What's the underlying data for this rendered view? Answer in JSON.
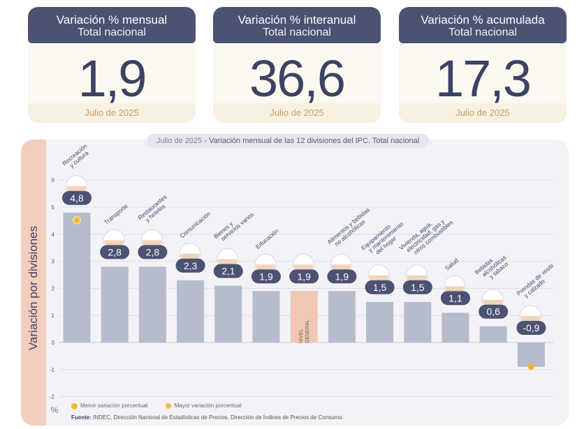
{
  "cards": [
    {
      "title": "Variación % mensual",
      "subtitle": "Total nacional",
      "value": "1,9",
      "date": "Julio de 2025"
    },
    {
      "title": "Variación % interanual",
      "subtitle": "Total nacional",
      "value": "36,6",
      "date": "Julio de 2025"
    },
    {
      "title": "Variación % acumulada",
      "subtitle": "Total nacional",
      "value": "17,3",
      "date": "Julio de 2025"
    }
  ],
  "colors": {
    "bar": "#b7bccd",
    "general_bar": "#efc7b3",
    "badge": "#4b5272",
    "accent": "#f2b632"
  },
  "chart_data": {
    "type": "bar",
    "title_date": "Julio de 2025",
    "title": "Variación mensual de las 12 divisiones del IPC. Total nacional",
    "ylabel": "Variación por divisiones",
    "yunit": "%",
    "ylim": [
      -2,
      6
    ],
    "yticks": [
      "-2",
      "-1",
      "0",
      "1",
      "2",
      "3",
      "4",
      "5",
      "6"
    ],
    "grid": true,
    "categories": [
      "Recreación y cultura",
      "Transporte",
      "Restaurantes y hoteles",
      "Comunicación",
      "Bienes y servicios varios",
      "Educación",
      "NIVEL GENERAL",
      "Alimentos y bebidas no alcohólicas",
      "Equipamiento y mantenimiento del hogar",
      "Vivienda, agua, electricidad, gas y otros combustibles",
      "Salud",
      "Bebidas alcohólicas y tabaco",
      "Prendas de vestir y calzado"
    ],
    "values": [
      4.8,
      2.8,
      2.8,
      2.3,
      2.1,
      1.9,
      1.9,
      1.9,
      1.5,
      1.5,
      1.1,
      0.6,
      -0.9
    ],
    "value_labels": [
      "4,8",
      "2,8",
      "2,8",
      "2,3",
      "2,1",
      "1,9",
      "1,9",
      "1,9",
      "1,5",
      "1,5",
      "1,1",
      "0,6",
      "-0,9"
    ],
    "category_label_lines": [
      [
        "Recreación",
        "y cultura"
      ],
      [
        "Transporte"
      ],
      [
        "Restaurantes",
        "y hoteles"
      ],
      [
        "Comunicación"
      ],
      [
        "Bienes y",
        "servicios varios"
      ],
      [
        "Educación"
      ],
      [],
      [
        "Alimentos y bebidas",
        "no alcohólicas"
      ],
      [
        "Equipamiento",
        "y mantenimiento",
        "del hogar"
      ],
      [
        "Vivienda, agua,",
        "electricidad, gas y",
        "otros combustibles"
      ],
      [
        "Salud"
      ],
      [
        "Bebidas",
        "alcohólicas",
        "y tabaco"
      ],
      [
        "Prendas de vestir",
        "y calzado"
      ]
    ],
    "icons": [
      "umbrella-icon",
      "bus-icon",
      "plate-icon",
      "phone-icon",
      "comb-icon",
      "notebook-icon",
      "basket-icon",
      "chicken-icon",
      "heater-icon",
      "bulb-icon",
      "first-aid-icon",
      "drinks-icon",
      "shirt-icon"
    ],
    "general_index": 6,
    "general_bar_label": [
      "NIVEL",
      "GENERAL"
    ],
    "max_marker_index": 0,
    "min_marker_index": 12
  },
  "legend": {
    "min_label": "Menor variación porcentual",
    "max_label": "Mayor variación porcentual"
  },
  "source": {
    "label": "Fuente:",
    "text": "INDEC, Dirección Nacional de Estadísticas de Precios. Dirección de Índices de Precios de Consumo."
  }
}
